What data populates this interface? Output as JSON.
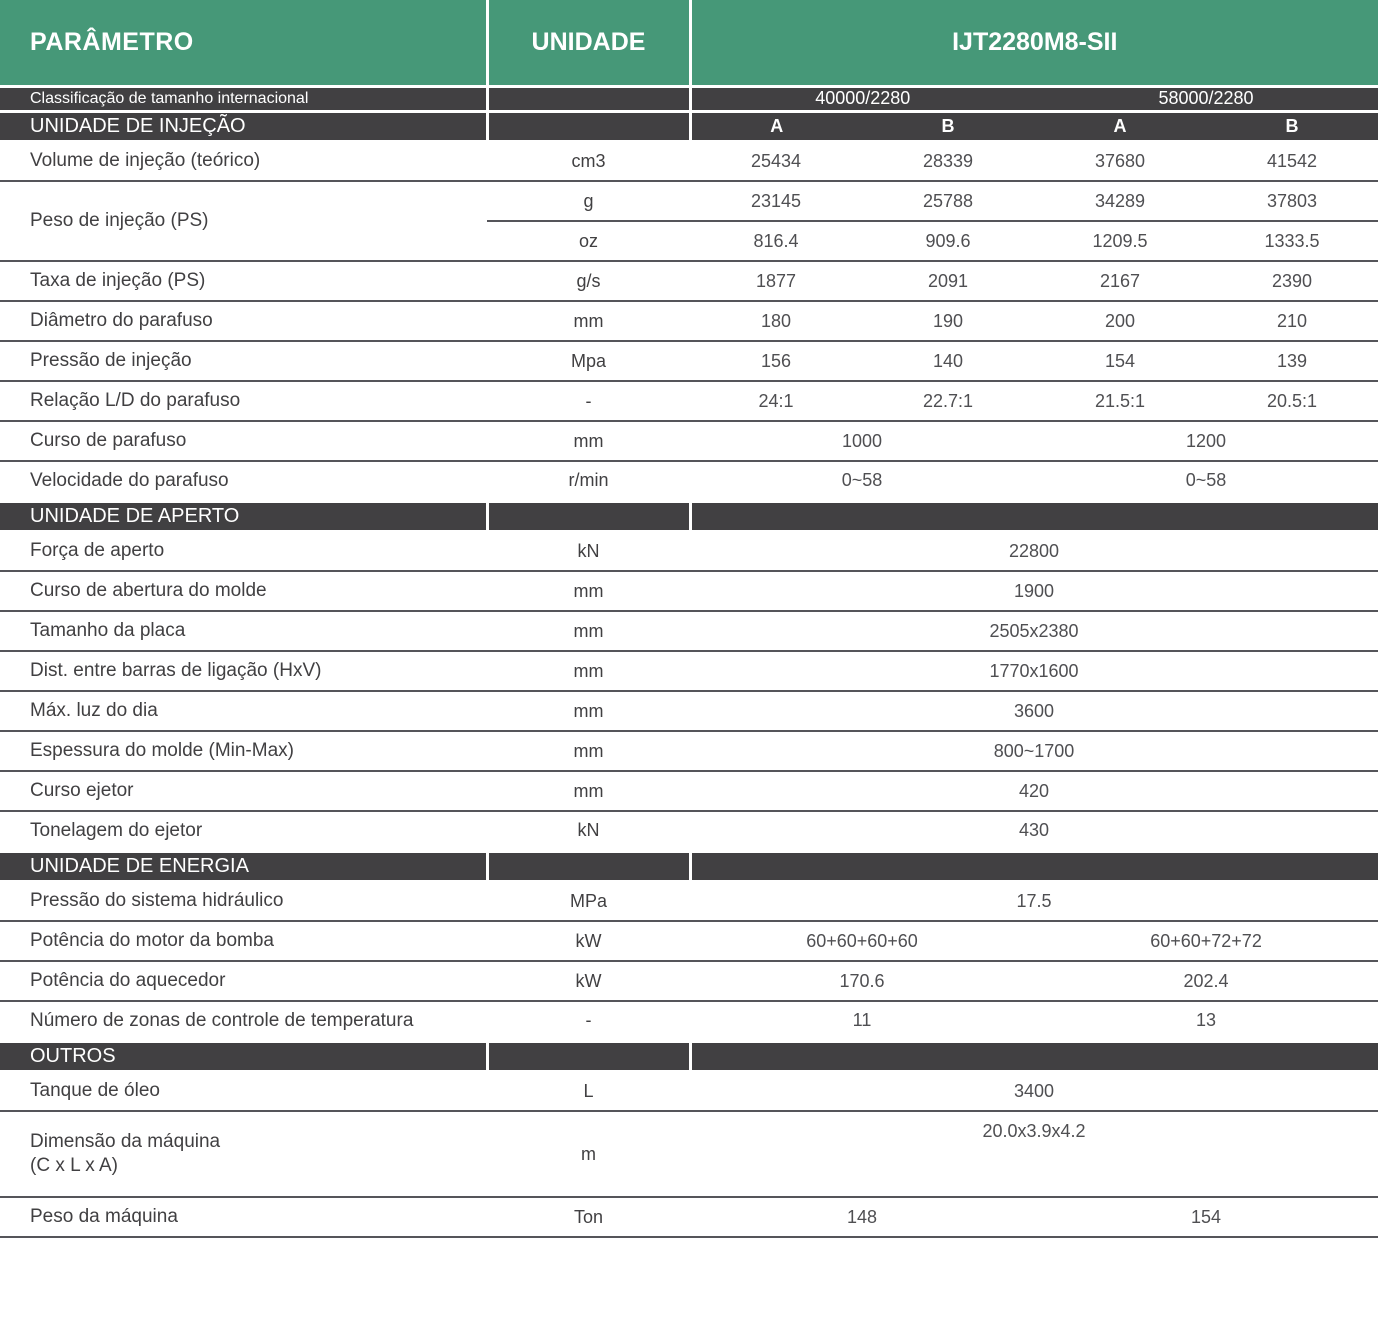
{
  "colors": {
    "green": "#469878",
    "dark": "#414042",
    "line": "#55555a",
    "text": "#414042",
    "value": "#4f4f52"
  },
  "header": {
    "parameter": "PARÂMETRO",
    "unit": "UNIDADE",
    "model": "IJT2280M8-SII"
  },
  "classification": {
    "label": "Classificação de tamanho internacional",
    "values": [
      "40000/2280",
      "58000/2280"
    ]
  },
  "sections": [
    {
      "title": "UNIDADE DE INJEÇÃO",
      "columns": [
        "A",
        "B",
        "A",
        "B"
      ],
      "rows": [
        {
          "label": "Volume de injeção (teórico)",
          "unit": "cm3",
          "values": [
            "25434",
            "28339",
            "37680",
            "41542"
          ]
        },
        {
          "label": "Peso de injeção (PS)",
          "subrows": [
            {
              "unit": "g",
              "values": [
                "23145",
                "25788",
                "34289",
                "37803"
              ]
            },
            {
              "unit": "oz",
              "values": [
                "816.4",
                "909.6",
                "1209.5",
                "1333.5"
              ]
            }
          ]
        },
        {
          "label": "Taxa de injeção (PS)",
          "unit": "g/s",
          "values": [
            "1877",
            "2091",
            "2167",
            "2390"
          ]
        },
        {
          "label": "Diâmetro do parafuso",
          "unit": "mm",
          "values": [
            "180",
            "190",
            "200",
            "210"
          ]
        },
        {
          "label": "Pressão de injeção",
          "unit": "Mpa",
          "values": [
            "156",
            "140",
            "154",
            "139"
          ]
        },
        {
          "label": "Relação L/D do parafuso",
          "unit": "-",
          "values": [
            "24:1",
            "22.7:1",
            "21.5:1",
            "20.5:1"
          ]
        },
        {
          "label": "Curso de parafuso",
          "unit": "mm",
          "values": [
            "1000",
            "1200"
          ]
        },
        {
          "label": "Velocidade do parafuso",
          "unit": "r/min",
          "values": [
            "0~58",
            "0~58"
          ]
        }
      ]
    },
    {
      "title": "UNIDADE DE APERTO",
      "rows": [
        {
          "label": "Força de aperto",
          "unit": "kN",
          "values": [
            "22800"
          ]
        },
        {
          "label": "Curso de abertura do molde",
          "unit": "mm",
          "values": [
            "1900"
          ]
        },
        {
          "label": "Tamanho da placa",
          "unit": "mm",
          "values": [
            "2505x2380"
          ]
        },
        {
          "label": "Dist. entre barras de ligação (HxV)",
          "unit": "mm",
          "values": [
            "1770x1600"
          ]
        },
        {
          "label": "Máx. luz do dia",
          "unit": "mm",
          "values": [
            "3600"
          ]
        },
        {
          "label": "Espessura do molde (Min-Max)",
          "unit": "mm",
          "values": [
            "800~1700"
          ]
        },
        {
          "label": "Curso ejetor",
          "unit": "mm",
          "values": [
            "420"
          ]
        },
        {
          "label": "Tonelagem do ejetor",
          "unit": "kN",
          "values": [
            "430"
          ]
        }
      ]
    },
    {
      "title": "UNIDADE DE ENERGIA",
      "rows": [
        {
          "label": "Pressão do sistema hidráulico",
          "unit": "MPa",
          "values": [
            "17.5"
          ]
        },
        {
          "label": "Potência do motor da bomba",
          "unit": "kW",
          "values": [
            "60+60+60+60",
            "60+60+72+72"
          ]
        },
        {
          "label": "Potência do aquecedor",
          "unit": "kW",
          "values": [
            "170.6",
            "202.4"
          ]
        },
        {
          "label": "Número de zonas de controle de temperatura",
          "unit": "-",
          "values": [
            "11",
            "13"
          ]
        }
      ]
    },
    {
      "title": "OUTROS",
      "rows": [
        {
          "label": "Tanque de óleo",
          "unit": "L",
          "values": [
            "3400"
          ]
        },
        {
          "label_lines": [
            "Dimensão da máquina",
            "(C x L x A)"
          ],
          "unit": "m",
          "values": [
            "20.0x3.9x4.2"
          ]
        },
        {
          "label": "Peso da máquina",
          "unit": "Ton",
          "values": [
            "148",
            "154"
          ]
        }
      ]
    }
  ]
}
